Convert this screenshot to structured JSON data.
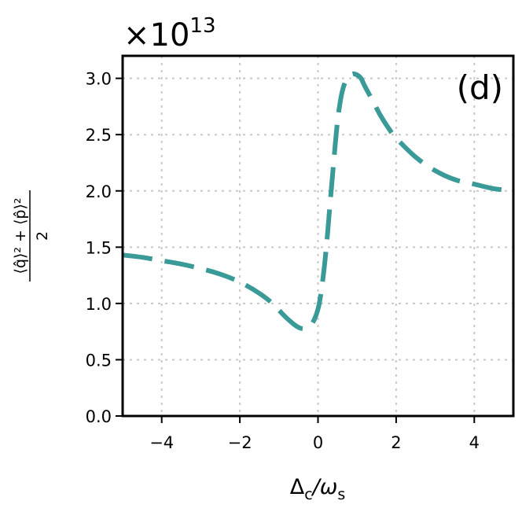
{
  "chart_data": {
    "type": "line",
    "panel_label": "(d)",
    "xlabel": "Δ_c/ω_s",
    "xlabel_main": "Δ",
    "xlabel_sub1": "c",
    "xlabel_slash": "/ω",
    "xlabel_sub2": "s",
    "ylabel_numerator": "⟨q̂⟩² + ⟨p̂⟩²",
    "ylabel_denominator": "2",
    "y_multiplier_base": "×10",
    "y_multiplier_exponent": "13",
    "xlim": [
      -5,
      5
    ],
    "ylim": [
      0,
      3.2
    ],
    "xticks": [
      -4,
      -2,
      0,
      2,
      4
    ],
    "xtick_labels": [
      "−4",
      "−2",
      "0",
      "2",
      "4"
    ],
    "yticks": [
      0.0,
      0.5,
      1.0,
      1.5,
      2.0,
      2.5,
      3.0
    ],
    "ytick_labels": [
      "0.0",
      "0.5",
      "1.0",
      "1.5",
      "2.0",
      "2.5",
      "3.0"
    ],
    "grid": true,
    "line_style": "dashed",
    "line_color": "#3a9a98",
    "series": [
      {
        "x": [
          -5.0,
          -4.5,
          -4.0,
          -3.5,
          -3.0,
          -2.5,
          -2.0,
          -1.5,
          -1.2,
          -1.0,
          -0.8,
          -0.6,
          -0.45,
          -0.3,
          -0.15,
          0.0,
          0.1,
          0.2,
          0.3,
          0.4,
          0.5,
          0.6,
          0.7,
          0.8,
          0.9,
          1.0,
          1.1,
          1.2,
          1.4,
          1.6,
          1.8,
          2.0,
          2.5,
          3.0,
          3.5,
          4.0,
          4.5,
          5.0
        ],
        "y": [
          1.43,
          1.41,
          1.38,
          1.35,
          1.31,
          1.26,
          1.19,
          1.09,
          1.01,
          0.94,
          0.87,
          0.81,
          0.78,
          0.78,
          0.82,
          0.95,
          1.15,
          1.45,
          1.85,
          2.25,
          2.62,
          2.85,
          2.97,
          3.02,
          3.04,
          3.03,
          3.0,
          2.93,
          2.8,
          2.67,
          2.56,
          2.47,
          2.3,
          2.18,
          2.1,
          2.06,
          2.02,
          2.0
        ]
      }
    ]
  }
}
